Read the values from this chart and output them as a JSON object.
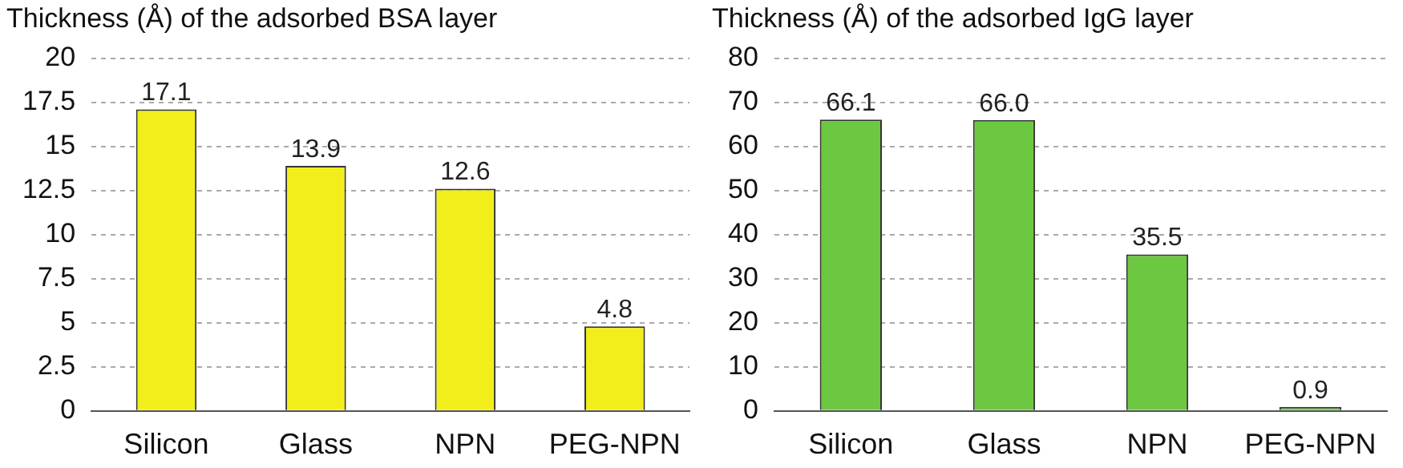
{
  "chart_data": [
    {
      "type": "bar",
      "title": "Thickness (Å) of the adsorbed BSA layer",
      "categories": [
        "Silicon",
        "Glass",
        "NPN",
        "PEG-NPN"
      ],
      "values": [
        17.1,
        13.9,
        12.6,
        4.8
      ],
      "value_labels": [
        "17.1",
        "13.9",
        "12.6",
        "4.8"
      ],
      "color": "#f2ee1c",
      "ylim": [
        0,
        20
      ],
      "yticks": [
        0,
        2.5,
        5,
        7.5,
        10,
        12.5,
        15,
        17.5,
        20
      ],
      "grid": "y",
      "legend": false
    },
    {
      "type": "bar",
      "title": "Thickness (Å) of the adsorbed IgG layer",
      "categories": [
        "Silicon",
        "Glass",
        "NPN",
        "PEG-NPN"
      ],
      "values": [
        66.1,
        66.0,
        35.5,
        0.9
      ],
      "value_labels": [
        "66.1",
        "66.0",
        "35.5",
        "0.9"
      ],
      "color": "#6cc840",
      "ylim": [
        0,
        80
      ],
      "yticks": [
        0,
        10,
        20,
        30,
        40,
        50,
        60,
        70,
        80
      ],
      "grid": "y",
      "legend": false
    }
  ]
}
